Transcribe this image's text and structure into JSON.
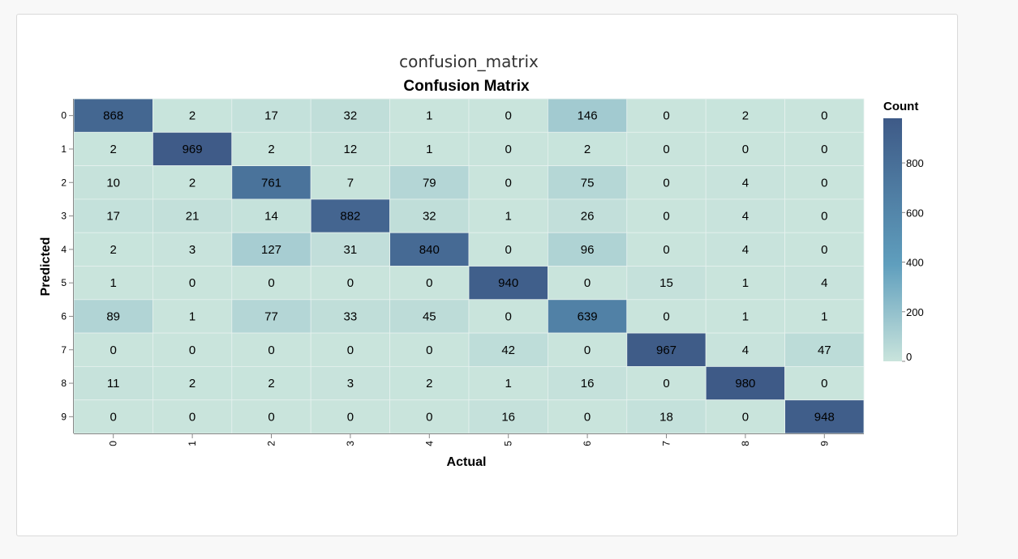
{
  "panel": {
    "title": "confusion_matrix"
  },
  "colors": {
    "low": "#c9e4dc",
    "mid": "#5f9ebd",
    "high": "#3e5a87",
    "grid": "#e6f1ee"
  },
  "chart_data": {
    "type": "heatmap",
    "title": "Confusion Matrix",
    "xlabel": "Actual",
    "ylabel": "Predicted",
    "x_categories": [
      "0",
      "1",
      "2",
      "3",
      "4",
      "5",
      "6",
      "7",
      "8",
      "9"
    ],
    "y_categories": [
      "0",
      "1",
      "2",
      "3",
      "4",
      "5",
      "6",
      "7",
      "8",
      "9"
    ],
    "values": [
      [
        868,
        2,
        17,
        32,
        1,
        0,
        146,
        0,
        2,
        0
      ],
      [
        2,
        969,
        2,
        12,
        1,
        0,
        2,
        0,
        0,
        0
      ],
      [
        10,
        2,
        761,
        7,
        79,
        0,
        75,
        0,
        4,
        0
      ],
      [
        17,
        21,
        14,
        882,
        32,
        1,
        26,
        0,
        4,
        0
      ],
      [
        2,
        3,
        127,
        31,
        840,
        0,
        96,
        0,
        4,
        0
      ],
      [
        1,
        0,
        0,
        0,
        0,
        940,
        0,
        15,
        1,
        4
      ],
      [
        89,
        1,
        77,
        33,
        45,
        0,
        639,
        0,
        1,
        1
      ],
      [
        0,
        0,
        0,
        0,
        0,
        42,
        0,
        967,
        4,
        47
      ],
      [
        11,
        2,
        2,
        3,
        2,
        1,
        16,
        0,
        980,
        0
      ],
      [
        0,
        0,
        0,
        0,
        0,
        16,
        0,
        18,
        0,
        948
      ]
    ],
    "legend": {
      "title": "Count",
      "ticks": [
        "800",
        "600",
        "400",
        "200",
        "0"
      ],
      "tick_values": [
        800,
        600,
        400,
        200,
        0
      ],
      "domain": [
        0,
        980
      ],
      "placement": "right"
    }
  }
}
